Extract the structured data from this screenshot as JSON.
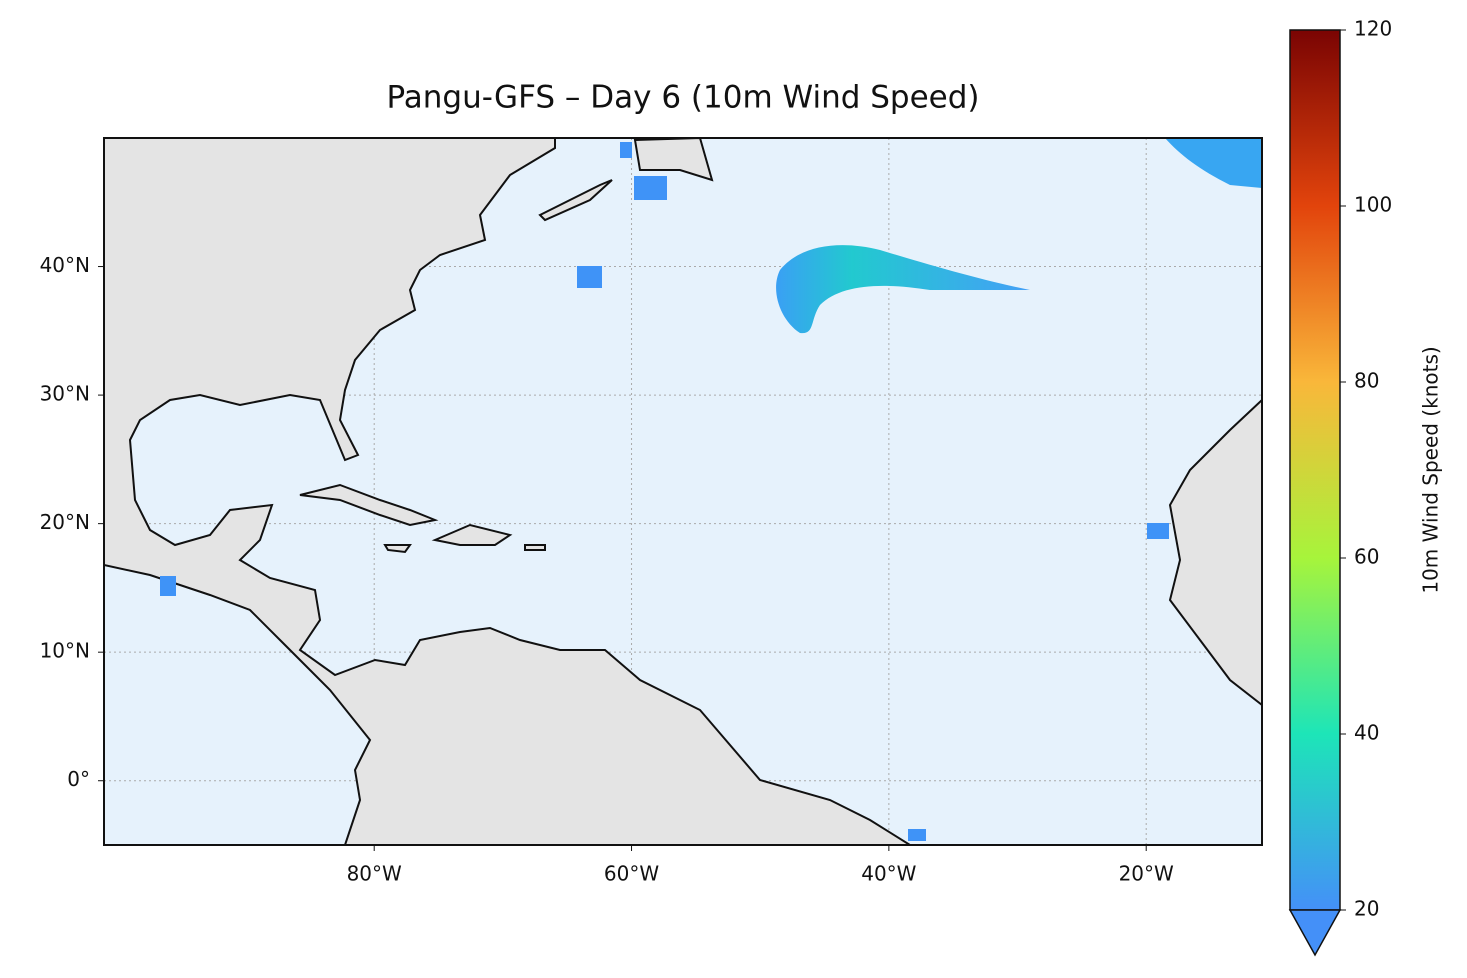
{
  "chart_data": {
    "type": "map",
    "title": "Pangu-GFS – Day 6 (10m Wind Speed)",
    "xlim": [
      -101,
      -11
    ],
    "ylim": [
      -5,
      50
    ],
    "xticks": [
      {
        "value": -80,
        "label": "80°W"
      },
      {
        "value": -60,
        "label": "60°W"
      },
      {
        "value": -40,
        "label": "40°W"
      },
      {
        "value": -20,
        "label": "20°W"
      }
    ],
    "yticks": [
      {
        "value": 0,
        "label": "0°"
      },
      {
        "value": 10,
        "label": "10°N"
      },
      {
        "value": 20,
        "label": "20°N"
      },
      {
        "value": 30,
        "label": "30°N"
      },
      {
        "value": 40,
        "label": "40°N"
      }
    ],
    "grid": true,
    "colorbar": {
      "label": "10m Wind Speed (knots)",
      "lim": [
        20,
        120
      ],
      "ticks": [
        20,
        40,
        60,
        80,
        100,
        120
      ],
      "colormap": [
        "#4490f8",
        "#1de5b8",
        "#a7f43b",
        "#f9b73a",
        "#e2440c",
        "#7a0403"
      ],
      "extend": "min"
    }
  }
}
